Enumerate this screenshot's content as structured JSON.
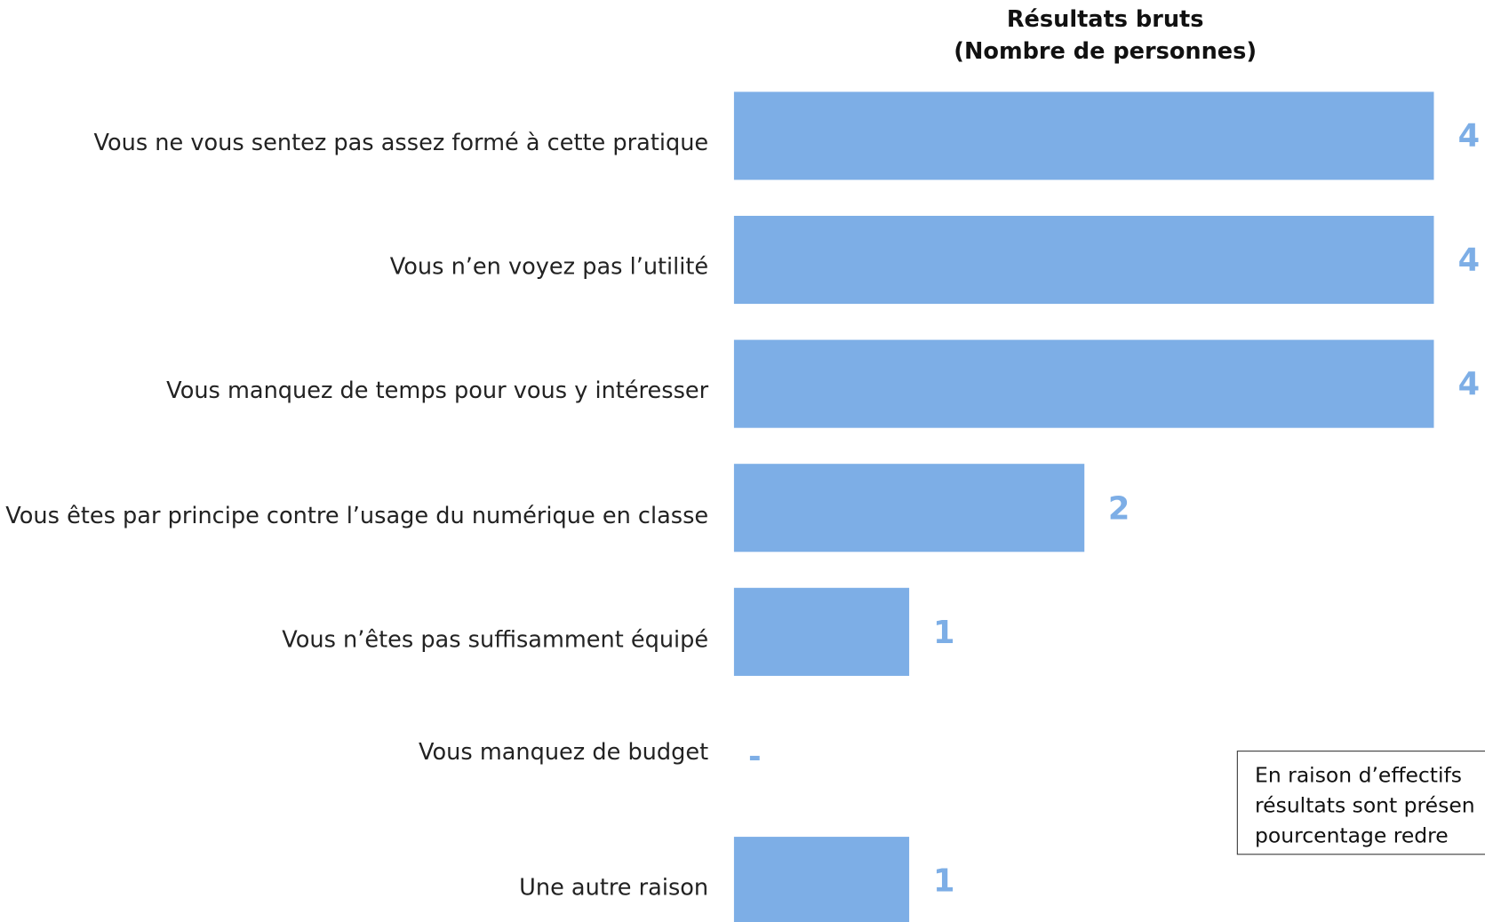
{
  "chart_data": {
    "type": "bar",
    "orientation": "horizontal",
    "title": "Résultats bruts",
    "subtitle": "(Nombre de personnes)",
    "categories": [
      "Vous ne vous sentez pas assez formé à cette pratique",
      "Vous n’en voyez pas l’utilité",
      "Vous manquez de temps pour vous y intéresser",
      "Vous êtes par principe contre l’usage du numérique en classe",
      "Vous n’êtes pas suffisamment équipé",
      "Vous manquez de budget",
      "Une autre raison"
    ],
    "values": [
      4,
      4,
      4,
      2,
      1,
      0,
      1
    ],
    "value_labels": [
      "4",
      "4",
      "4",
      "2",
      "1",
      "-",
      "1"
    ],
    "color": "#7daee6",
    "xlim": [
      0,
      4
    ],
    "note": [
      "En raison d’effectifs",
      "résultats sont présen",
      "pourcentage redre"
    ]
  }
}
